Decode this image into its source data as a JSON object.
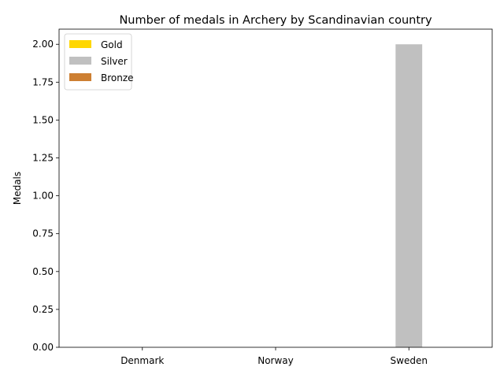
{
  "chart_data": {
    "type": "bar",
    "title": "Number of medals in Archery by Scandinavian country",
    "xlabel": "",
    "ylabel": "Medals",
    "categories": [
      "Denmark",
      "Norway",
      "Sweden"
    ],
    "series": [
      {
        "name": "Gold",
        "color": "#ffd700",
        "values": [
          0,
          0,
          0
        ]
      },
      {
        "name": "Silver",
        "color": "#c0c0c0",
        "values": [
          0,
          0,
          2
        ]
      },
      {
        "name": "Bronze",
        "color": "#cd7f32",
        "values": [
          0,
          0,
          0
        ]
      }
    ],
    "ylim": [
      0,
      2.1
    ],
    "yticks": [
      "0.00",
      "0.25",
      "0.50",
      "0.75",
      "1.00",
      "1.25",
      "1.50",
      "1.75",
      "2.00"
    ],
    "grid": false,
    "legend_position": "upper-left"
  }
}
